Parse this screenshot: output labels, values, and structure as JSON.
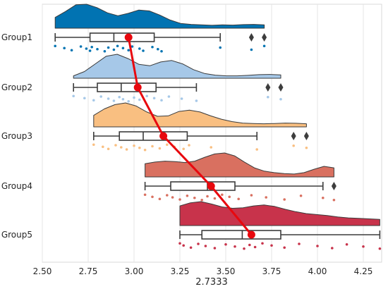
{
  "chart_data": {
    "type": "raincloud",
    "title": "",
    "xlabel": "2.7333",
    "ylabel": "",
    "xlim": [
      2.5,
      4.35
    ],
    "xticks": [
      "2.50",
      "2.75",
      "3.00",
      "3.25",
      "3.50",
      "3.75",
      "4.00",
      "4.25"
    ],
    "grid": "vertical",
    "mean_line_color": "#e8080e",
    "categories": [
      "Group1",
      "Group2",
      "Group3",
      "Group4",
      "Group5"
    ],
    "series": [
      {
        "category": "Group1",
        "color": "#0173b2",
        "box": {
          "min": 2.57,
          "q1": 2.76,
          "median": 2.89,
          "q3": 3.11,
          "max": 3.47
        },
        "mean": 2.97,
        "outliers": [
          3.64,
          3.71
        ],
        "points": [
          2.57,
          2.62,
          2.66,
          2.71,
          2.74,
          2.76,
          2.77,
          2.8,
          2.84,
          2.86,
          2.89,
          2.91,
          2.94,
          2.97,
          2.99,
          3.03,
          3.05,
          3.1,
          3.13,
          3.15,
          3.47,
          3.64,
          3.71
        ],
        "density": [
          0.45,
          0.7,
          0.98,
          1.0,
          0.86,
          0.64,
          0.52,
          0.62,
          0.76,
          0.72,
          0.55,
          0.34,
          0.2,
          0.16,
          0.14,
          0.12,
          0.14,
          0.13,
          0.15,
          0.16,
          0.14
        ]
      },
      {
        "category": "Group2",
        "color": "#a6c8e8",
        "box": {
          "min": 2.67,
          "q1": 2.8,
          "median": 2.93,
          "q3": 3.12,
          "max": 3.34
        },
        "mean": 3.02,
        "outliers": [
          3.73,
          3.8
        ],
        "points": [
          2.67,
          2.73,
          2.78,
          2.82,
          2.86,
          2.89,
          2.92,
          2.94,
          2.97,
          3.0,
          3.03,
          3.07,
          3.11,
          3.15,
          3.19,
          3.26,
          3.34,
          3.73,
          3.8
        ],
        "density": [
          0.1,
          0.28,
          0.6,
          0.92,
          1.0,
          0.82,
          0.58,
          0.52,
          0.68,
          0.74,
          0.6,
          0.36,
          0.2,
          0.13,
          0.1,
          0.1,
          0.12,
          0.15,
          0.16,
          0.14
        ]
      },
      {
        "category": "Group3",
        "color": "#f9bf81",
        "box": {
          "min": 2.78,
          "q1": 2.92,
          "median": 3.05,
          "q3": 3.29,
          "max": 3.67
        },
        "mean": 3.16,
        "outliers": [
          3.87,
          3.94
        ],
        "points": [
          2.78,
          2.83,
          2.86,
          2.9,
          2.93,
          2.96,
          3.0,
          3.03,
          3.06,
          3.1,
          3.14,
          3.18,
          3.22,
          3.27,
          3.3,
          3.42,
          3.67,
          3.87,
          3.94
        ],
        "density": [
          0.48,
          0.75,
          0.93,
          1.0,
          0.87,
          0.62,
          0.44,
          0.46,
          0.64,
          0.7,
          0.62,
          0.46,
          0.32,
          0.22,
          0.16,
          0.14,
          0.13,
          0.14,
          0.16,
          0.15,
          0.13
        ]
      },
      {
        "category": "Group4",
        "color": "#d97060",
        "box": {
          "min": 3.06,
          "q1": 3.2,
          "median": 3.4,
          "q3": 3.55,
          "max": 4.03
        },
        "mean": 3.42,
        "outliers": [
          4.09
        ],
        "points": [
          3.06,
          3.1,
          3.14,
          3.18,
          3.21,
          3.25,
          3.29,
          3.33,
          3.37,
          3.4,
          3.44,
          3.48,
          3.52,
          3.57,
          3.64,
          3.72,
          3.82,
          3.91,
          4.03,
          4.09
        ],
        "density": [
          0.55,
          0.62,
          0.66,
          0.64,
          0.6,
          0.66,
          0.82,
          0.96,
          1.0,
          0.88,
          0.62,
          0.38,
          0.24,
          0.18,
          0.14,
          0.12,
          0.18,
          0.32,
          0.44,
          0.38
        ]
      },
      {
        "category": "Group5",
        "color": "#c8334b",
        "box": {
          "min": 3.25,
          "q1": 3.37,
          "median": 3.59,
          "q3": 3.8,
          "max": 4.34
        },
        "mean": 3.64,
        "outliers": [],
        "points": [
          3.25,
          3.27,
          3.31,
          3.35,
          3.39,
          3.44,
          3.5,
          3.55,
          3.6,
          3.63,
          3.66,
          3.7,
          3.75,
          3.82,
          3.9,
          4.0,
          4.08,
          4.16,
          4.25,
          4.34
        ],
        "density": [
          0.82,
          0.95,
          1.0,
          0.9,
          0.78,
          0.72,
          0.74,
          0.82,
          0.86,
          0.8,
          0.68,
          0.58,
          0.5,
          0.46,
          0.42,
          0.36,
          0.32,
          0.3,
          0.28,
          0.26
        ]
      }
    ]
  }
}
